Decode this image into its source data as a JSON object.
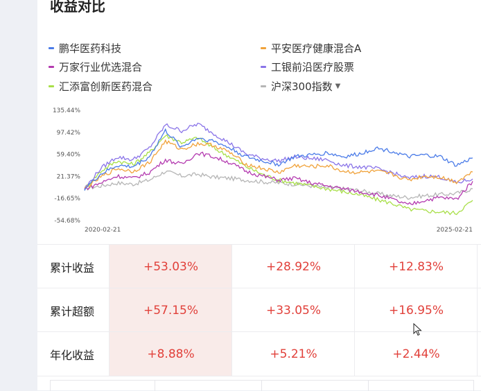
{
  "title": "收益对比",
  "legend": [
    {
      "name": "鹏华医药科技",
      "color": "#4a7be8"
    },
    {
      "name": "平安医疗健康混合A",
      "color": "#f0a23a"
    },
    {
      "name": "万家行业优选混合",
      "color": "#b43bb0"
    },
    {
      "name": "工银前沿医疗股票",
      "color": "#8a74e8"
    },
    {
      "name": "汇添富创新医药混合",
      "color": "#a8df48"
    },
    {
      "name": "沪深300指数",
      "color": "#b5b5b5"
    }
  ],
  "chart_data": {
    "type": "line",
    "x_start": "2020-02-21",
    "x_end": "2025-02-21",
    "y_ticks": [
      "135.44%",
      "97.42%",
      "59.40%",
      "21.37%",
      "-16.65%",
      "-54.68%"
    ],
    "y_range": [
      -54.68,
      135.44
    ],
    "x_tick_labels": [
      "2020-02-21",
      "2025-02-21"
    ],
    "series": [
      {
        "name": "鹏华医药科技",
        "color": "#4a7be8",
        "values": [
          0,
          25,
          40,
          38,
          55,
          100,
          72,
          88,
          82,
          70,
          55,
          48,
          42,
          55,
          58,
          62,
          55,
          60,
          70,
          65,
          55,
          58,
          55,
          40,
          53
        ]
      },
      {
        "name": "平安医疗健康混合A",
        "color": "#f0a23a",
        "values": [
          0,
          20,
          35,
          30,
          45,
          82,
          68,
          78,
          75,
          62,
          42,
          35,
          28,
          40,
          38,
          40,
          30,
          28,
          30,
          25,
          15,
          22,
          20,
          12,
          29
        ]
      },
      {
        "name": "万家行业优选混合",
        "color": "#b43bb0",
        "values": [
          0,
          10,
          22,
          18,
          28,
          50,
          42,
          62,
          55,
          45,
          30,
          22,
          15,
          18,
          10,
          5,
          0,
          -5,
          -10,
          -18,
          -28,
          -20,
          -15,
          -18,
          13
        ]
      },
      {
        "name": "工银前沿医疗股票",
        "color": "#8a74e8",
        "values": [
          0,
          35,
          55,
          50,
          70,
          110,
          100,
          112,
          95,
          78,
          60,
          52,
          48,
          55,
          52,
          50,
          40,
          38,
          35,
          28,
          18,
          22,
          20,
          10,
          17
        ]
      },
      {
        "name": "汇添富创新医药混合",
        "color": "#a8df48",
        "values": [
          0,
          30,
          48,
          42,
          62,
          92,
          80,
          88,
          70,
          55,
          38,
          25,
          15,
          10,
          5,
          0,
          -5,
          -10,
          -18,
          -25,
          -35,
          -38,
          -40,
          -42,
          -20
        ]
      },
      {
        "name": "沪深300指数",
        "color": "#b5b5b5",
        "values": [
          0,
          5,
          10,
          8,
          15,
          30,
          22,
          25,
          20,
          18,
          15,
          12,
          10,
          8,
          5,
          2,
          0,
          -3,
          -8,
          -12,
          -15,
          -12,
          -10,
          -8,
          0
        ]
      }
    ]
  },
  "table": {
    "rows": [
      {
        "label": "累计收益",
        "values": [
          "+53.03%",
          "+28.92%",
          "+12.83%"
        ]
      },
      {
        "label": "累计超额",
        "values": [
          "+57.15%",
          "+33.05%",
          "+16.95%"
        ]
      },
      {
        "label": "年化收益",
        "values": [
          "+8.88%",
          "+5.21%",
          "+2.44%"
        ]
      }
    ]
  }
}
